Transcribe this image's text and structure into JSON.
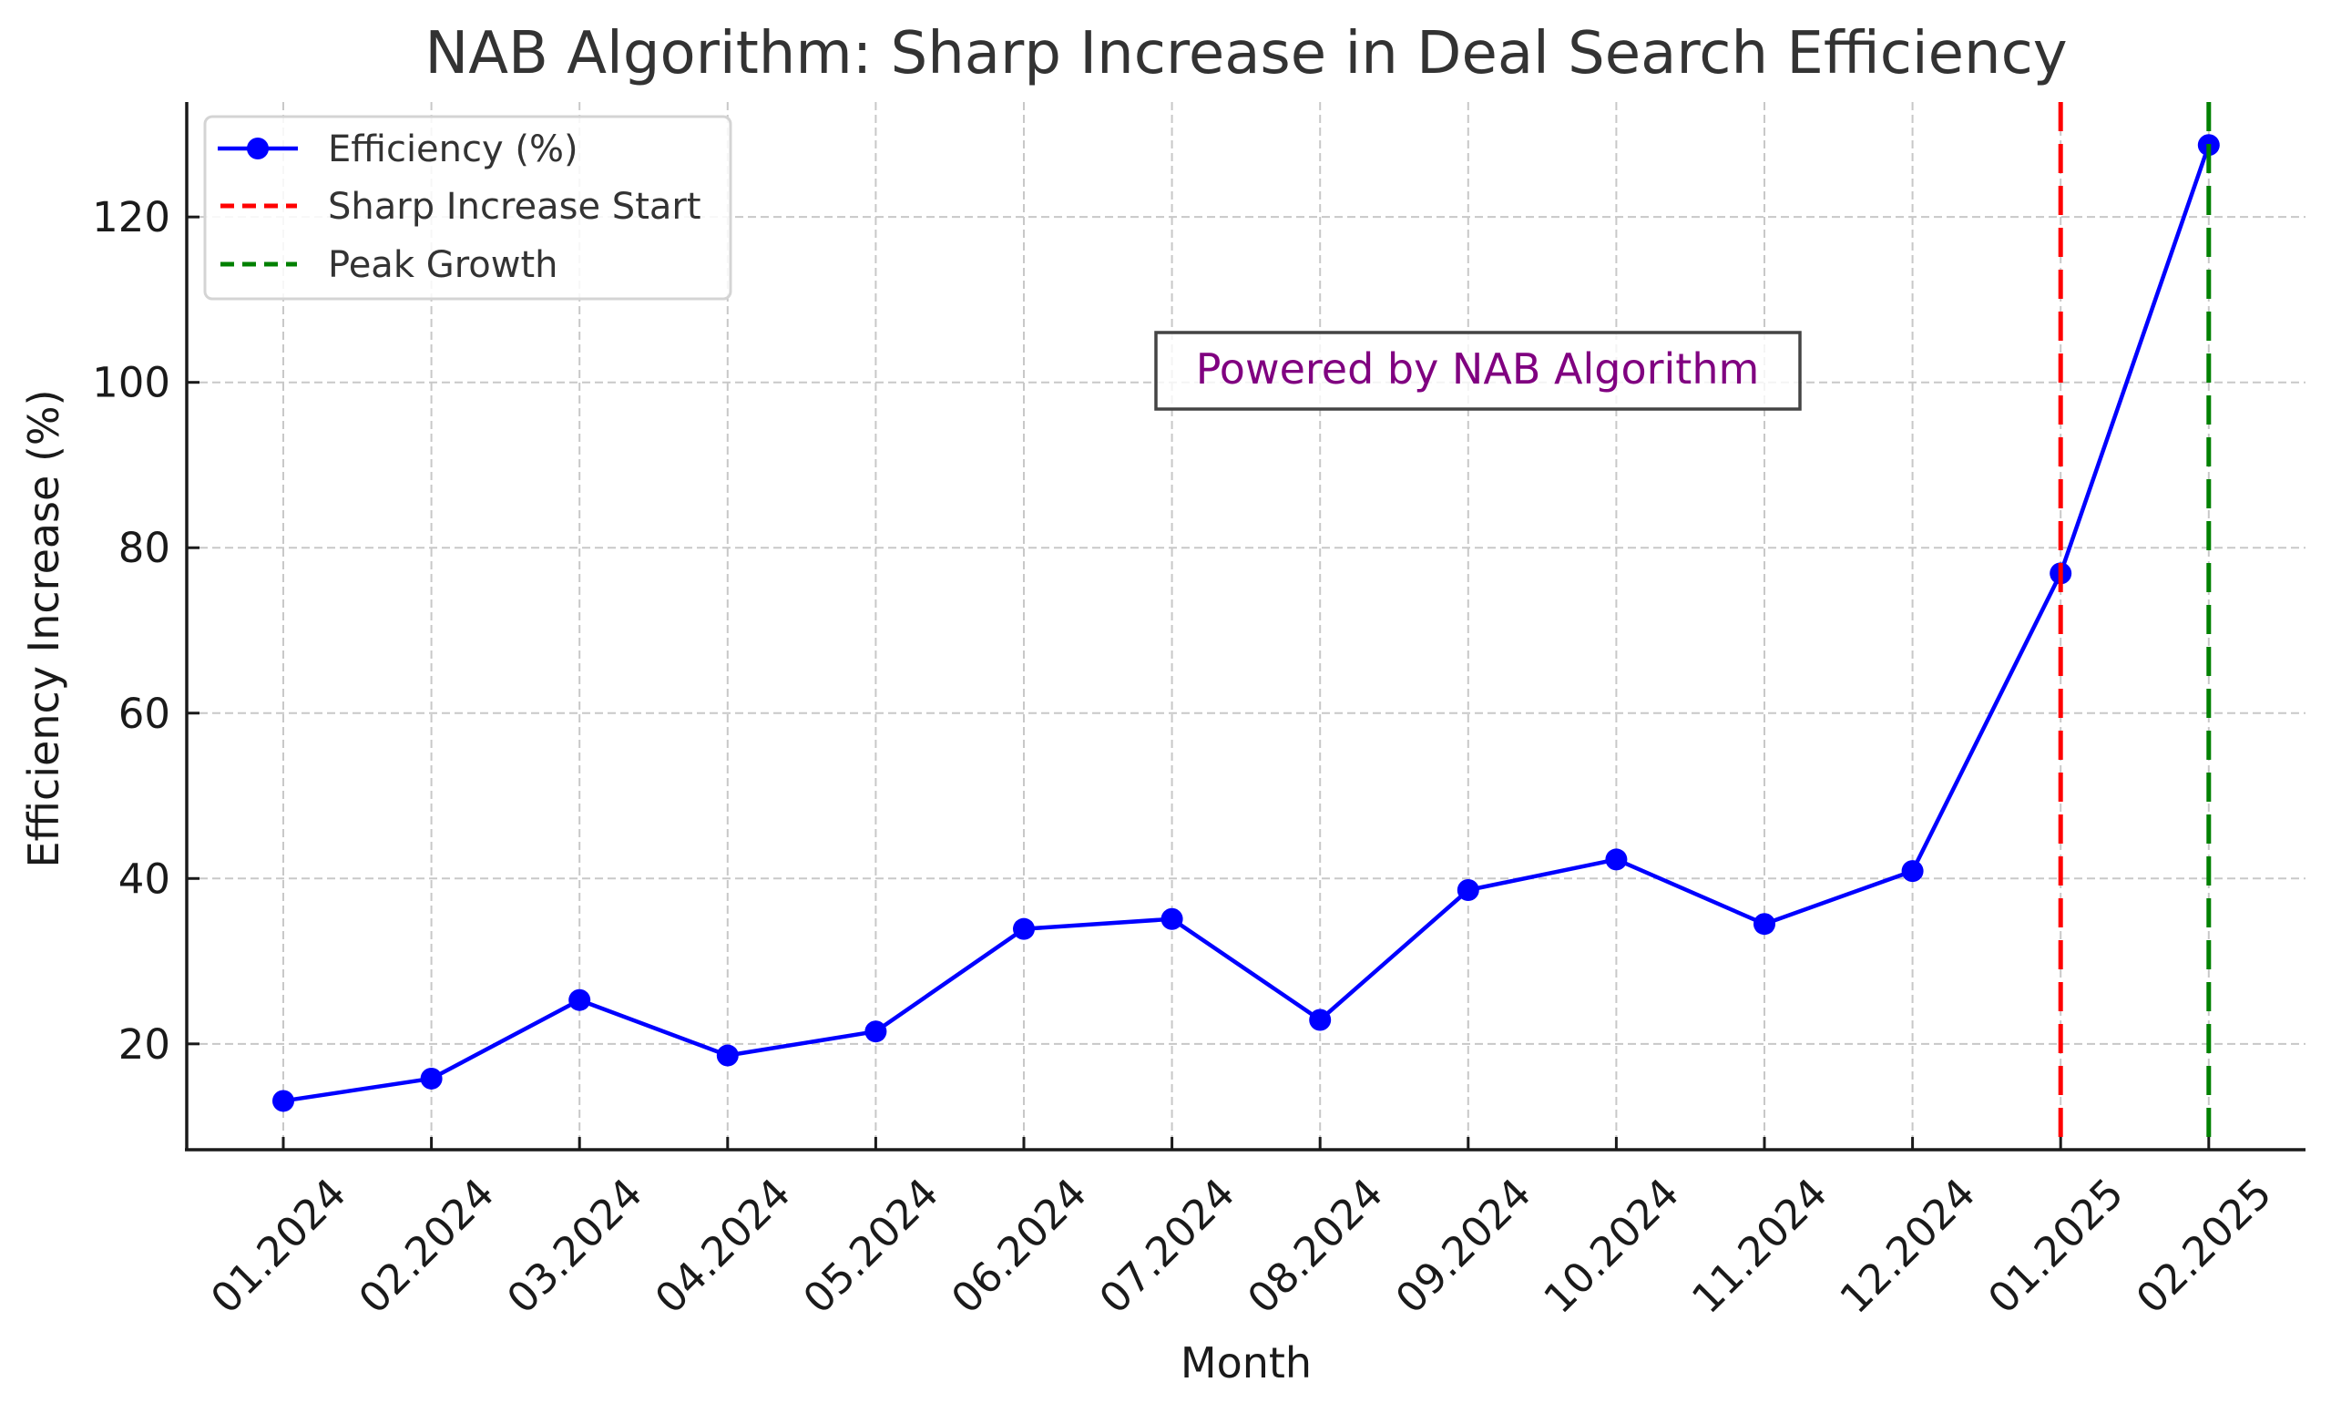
{
  "chart_data": {
    "type": "line",
    "title": "NAB Algorithm: Sharp Increase in Deal Search Efficiency",
    "xlabel": "Month",
    "ylabel": "Efficiency Increase (%)",
    "categories": [
      "01.2024",
      "02.2024",
      "03.2024",
      "04.2024",
      "05.2024",
      "06.2024",
      "07.2024",
      "08.2024",
      "09.2024",
      "10.2024",
      "11.2024",
      "12.2024",
      "01.2025",
      "02.2025"
    ],
    "series": [
      {
        "name": "Efficiency (%)",
        "color": "#0000ff",
        "marker": "circle",
        "values": [
          13.1,
          15.8,
          25.3,
          18.6,
          21.5,
          33.9,
          35.1,
          22.9,
          38.6,
          42.3,
          34.5,
          40.9,
          76.9,
          128.7
        ]
      }
    ],
    "vlines": [
      {
        "name": "Sharp Increase Start",
        "category": "01.2025",
        "color": "#ff0000",
        "style": "dashed"
      },
      {
        "name": "Peak Growth",
        "category": "02.2025",
        "color": "#008000",
        "style": "dashed"
      }
    ],
    "yticks": [
      20,
      40,
      60,
      80,
      100,
      120
    ],
    "ylim": [
      7.2,
      133.9
    ],
    "grid": true,
    "legend": {
      "placement": "top-left",
      "entries": [
        "Efficiency (%)",
        "Sharp Increase Start",
        "Peak Growth"
      ]
    },
    "annotation": {
      "text": "Powered by NAB Algorithm",
      "color": "#800080",
      "border_color": "#444444"
    }
  }
}
